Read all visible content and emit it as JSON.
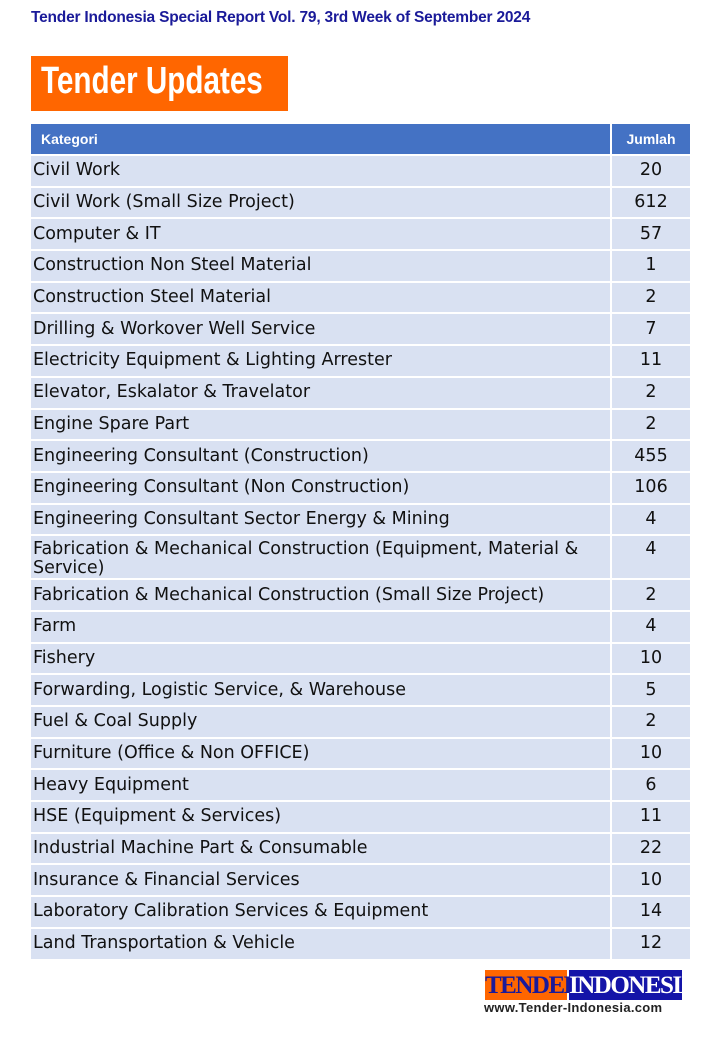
{
  "report_title": "Tender Indonesia Special Report Vol. 79, 3rd Week of September 2024",
  "banner": "Tender Updates",
  "table": {
    "headers": {
      "category": "Kategori",
      "count": "Jumlah"
    },
    "rows": [
      {
        "category": "Civil Work",
        "count": "20"
      },
      {
        "category": "Civil Work (Small Size Project)",
        "count": "612"
      },
      {
        "category": "Computer & IT",
        "count": "57"
      },
      {
        "category": "Construction Non Steel Material",
        "count": "1"
      },
      {
        "category": "Construction Steel Material",
        "count": "2"
      },
      {
        "category": "Drilling & Workover Well Service",
        "count": "7"
      },
      {
        "category": "Electricity Equipment & Lighting Arrester",
        "count": "11"
      },
      {
        "category": "Elevator, Eskalator & Travelator",
        "count": "2"
      },
      {
        "category": "Engine Spare Part",
        "count": "2"
      },
      {
        "category": "Engineering Consultant (Construction)",
        "count": "455"
      },
      {
        "category": "Engineering Consultant (Non Construction)",
        "count": "106"
      },
      {
        "category": "Engineering Consultant Sector Energy & Mining",
        "count": "4"
      },
      {
        "category": "Fabrication & Mechanical Construction (Equipment, Material & Service)",
        "count": "4"
      },
      {
        "category": "Fabrication & Mechanical Construction (Small Size Project)",
        "count": "2"
      },
      {
        "category": "Farm",
        "count": "4"
      },
      {
        "category": "Fishery",
        "count": "10"
      },
      {
        "category": "Forwarding, Logistic Service, & Warehouse",
        "count": "5"
      },
      {
        "category": "Fuel & Coal Supply",
        "count": "2"
      },
      {
        "category": "Furniture (Office & Non OFFICE)",
        "count": "10"
      },
      {
        "category": "Heavy Equipment",
        "count": "6"
      },
      {
        "category": "HSE (Equipment & Services)",
        "count": "11"
      },
      {
        "category": "Industrial Machine Part & Consumable",
        "count": "22"
      },
      {
        "category": "Insurance & Financial Services",
        "count": "10"
      },
      {
        "category": "Laboratory Calibration Services & Equipment",
        "count": "14"
      },
      {
        "category": "Land Transportation & Vehicle",
        "count": "12"
      }
    ]
  },
  "logo": {
    "part1": "TENDER",
    "part2": "INDONESIA",
    "url": "www.Tender-Indonesia.com"
  },
  "colors": {
    "header": "#4472c4",
    "row": "#d9e1f2",
    "banner": "#ff6600",
    "title": "#1a1a99"
  }
}
